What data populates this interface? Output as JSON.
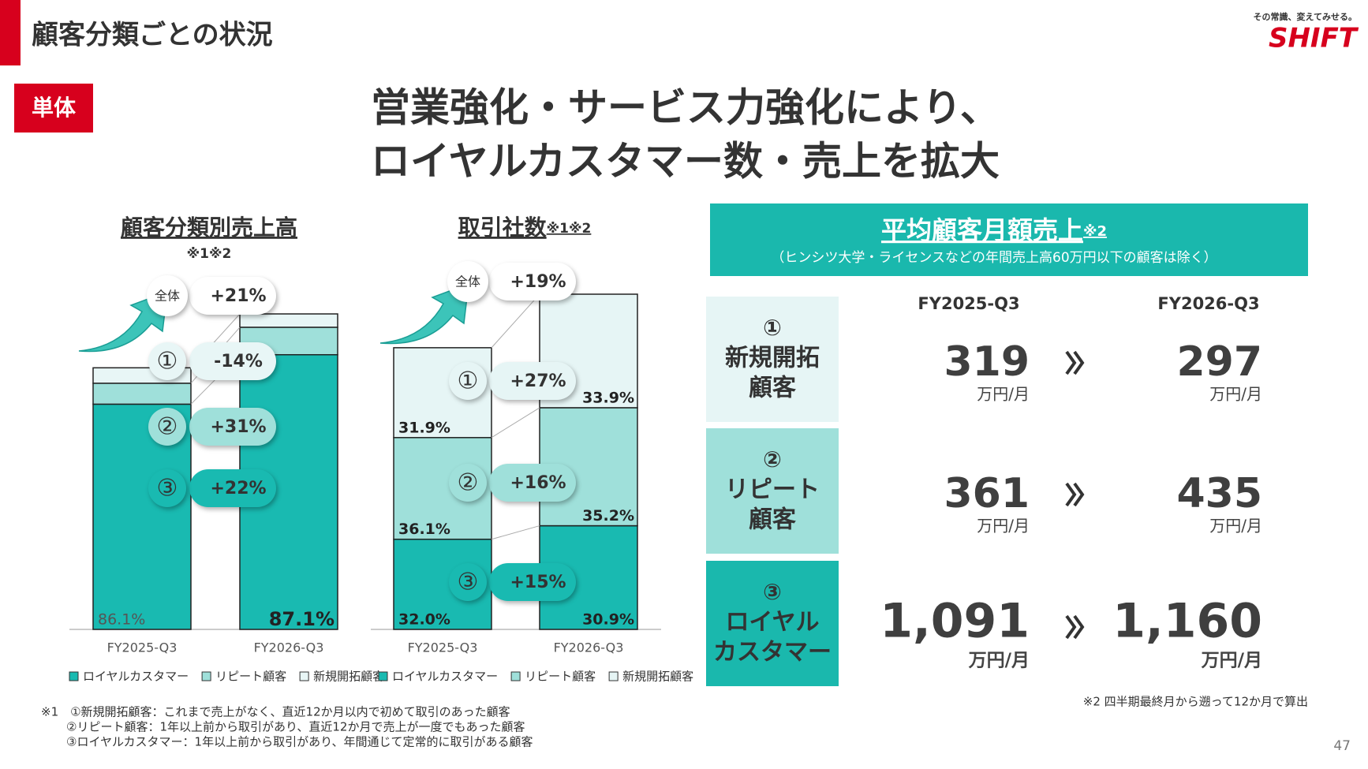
{
  "header": {
    "title": "顧客分類ごとの状況",
    "badge": "単体",
    "headline": [
      "営業強化・サービス力強化により、",
      "ロイヤルカスタマー数・売上を拡大"
    ],
    "tagline": "その常識、変えてみせる。",
    "logo": "SHIFT"
  },
  "chart_data": [
    {
      "type": "bar",
      "stacked": true,
      "title": "顧客分類別売上高",
      "note": "※1※2",
      "categories": [
        "FY2025-Q3",
        "FY2026-Q3"
      ],
      "series": [
        {
          "name": "ロイヤルカスタマー",
          "color": "#19bab1",
          "values": [
            86.1,
            105.0
          ],
          "shares": [
            "86.1%",
            "87.1%"
          ]
        },
        {
          "name": "リピート顧客",
          "color": "#9fe0da",
          "values": [
            8.0,
            10.5
          ],
          "shares": [
            null,
            null
          ]
        },
        {
          "name": "新規開拓顧客",
          "color": "#e8f6f6",
          "values": [
            5.9,
            5.1
          ],
          "shares": [
            null,
            null
          ]
        }
      ],
      "changes": [
        {
          "label": "全体",
          "value": "+21%"
        },
        {
          "label": "①",
          "value": "-14%"
        },
        {
          "label": "②",
          "value": "+31%"
        },
        {
          "label": "③",
          "value": "+22%"
        }
      ]
    },
    {
      "type": "bar",
      "stacked": true,
      "title": "取引社数",
      "note": "※1※2",
      "categories": [
        "FY2025-Q3",
        "FY2026-Q3"
      ],
      "series": [
        {
          "name": "ロイヤルカスタマー",
          "color": "#19bab1",
          "values": [
            32.0,
            36.8
          ],
          "shares": [
            "32.0%",
            "30.9%"
          ]
        },
        {
          "name": "リピート顧客",
          "color": "#9fe0da",
          "values": [
            36.1,
            41.9
          ],
          "shares": [
            "36.1%",
            "35.2%"
          ]
        },
        {
          "name": "新規開拓顧客",
          "color": "#e6f5f5",
          "values": [
            31.9,
            40.3
          ],
          "shares": [
            "31.9%",
            "33.9%"
          ]
        }
      ],
      "changes": [
        {
          "label": "全体",
          "value": "+19%"
        },
        {
          "label": "①",
          "value": "+27%"
        },
        {
          "label": "②",
          "value": "+16%"
        },
        {
          "label": "③",
          "value": "+15%"
        }
      ]
    }
  ],
  "table": {
    "title": "平均顧客月額売上",
    "title_note": "※2",
    "subtitle": "（ヒンシツ大学・ライセンスなどの年間売上高60万円以下の顧客は除く）",
    "columns": [
      "FY2025-Q3",
      "FY2026-Q3"
    ],
    "rows": [
      {
        "label": [
          "①",
          "新規開拓",
          "顧客"
        ],
        "values": [
          "319",
          "297"
        ],
        "unit": "万円/月"
      },
      {
        "label": [
          "②",
          "リピート",
          "顧客"
        ],
        "values": [
          "361",
          "435"
        ],
        "unit": "万円/月"
      },
      {
        "label": [
          "③",
          "ロイヤル",
          "カスタマー"
        ],
        "values": [
          "1,091",
          "1,160"
        ],
        "unit": "万円/月"
      }
    ],
    "note": "※2 四半期最終月から遡って12か月で算出"
  },
  "footnotes": [
    "※1　①新規開拓顧客：これまで売上がなく、直近12か月以内で初めて取引のあった顧客",
    "②リピート顧客：1年以上前から取引があり、直近12か月で売上が一度でもあった顧客",
    "③ロイヤルカスタマー：1年以上前から取引があり、年間通じて定常的に取引がある顧客"
  ],
  "page": "47"
}
